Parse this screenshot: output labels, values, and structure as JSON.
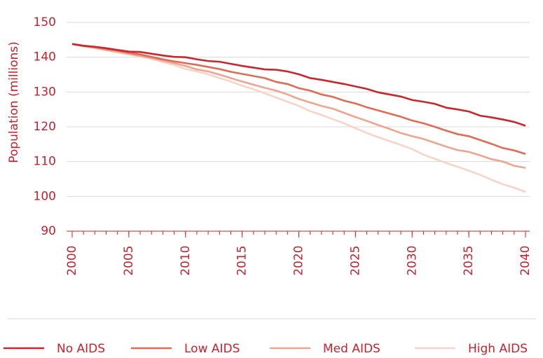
{
  "chart_data": {
    "type": "line",
    "ylabel": "Population (millions)",
    "x": [
      2000,
      2001,
      2002,
      2003,
      2004,
      2005,
      2006,
      2007,
      2008,
      2009,
      2010,
      2011,
      2012,
      2013,
      2014,
      2015,
      2016,
      2017,
      2018,
      2019,
      2020,
      2021,
      2022,
      2023,
      2024,
      2025,
      2026,
      2027,
      2028,
      2029,
      2030,
      2031,
      2032,
      2033,
      2034,
      2035,
      2036,
      2037,
      2038,
      2039,
      2040
    ],
    "xlim": [
      2000,
      2040
    ],
    "xticks": [
      2000,
      2005,
      2010,
      2015,
      2020,
      2025,
      2030,
      2035,
      2040
    ],
    "ylim": [
      90,
      150
    ],
    "yticks": [
      90,
      100,
      110,
      120,
      130,
      140,
      150
    ],
    "grid": true,
    "legend": "bottom",
    "series": [
      {
        "name": "No AIDS",
        "color": "#c8282d",
        "values": [
          143.8,
          143.3,
          143.0,
          142.6,
          142.1,
          141.6,
          141.5,
          141.0,
          140.5,
          140.1,
          140.0,
          139.4,
          138.9,
          138.7,
          138.1,
          137.5,
          137.0,
          136.5,
          136.4,
          135.9,
          135.1,
          134.0,
          133.5,
          132.9,
          132.3,
          131.6,
          130.9,
          129.9,
          129.3,
          128.7,
          127.7,
          127.2,
          126.6,
          125.5,
          125.0,
          124.4,
          123.2,
          122.7,
          122.1,
          121.4,
          120.3
        ]
      },
      {
        "name": "Low AIDS",
        "color": "#e06c55",
        "values": [
          143.8,
          143.3,
          142.9,
          142.4,
          141.9,
          141.3,
          140.8,
          140.1,
          139.4,
          138.8,
          138.3,
          137.8,
          137.2,
          136.6,
          135.8,
          135.2,
          134.6,
          134.0,
          132.9,
          132.3,
          131.1,
          130.4,
          129.3,
          128.6,
          127.5,
          126.7,
          125.6,
          124.7,
          123.8,
          122.9,
          121.8,
          121.0,
          120.0,
          118.9,
          117.9,
          117.3,
          116.2,
          115.1,
          113.9,
          113.2,
          112.2
        ]
      },
      {
        "name": "Med AIDS",
        "color": "#eda491",
        "values": [
          143.8,
          143.2,
          142.7,
          142.1,
          141.6,
          141.0,
          140.4,
          139.8,
          139.0,
          138.3,
          137.5,
          136.5,
          135.9,
          135.0,
          134.0,
          133.0,
          132.1,
          131.2,
          130.4,
          129.3,
          128.0,
          127.0,
          126.0,
          125.2,
          124.0,
          122.8,
          121.7,
          120.5,
          119.4,
          118.2,
          117.3,
          116.5,
          115.4,
          114.3,
          113.3,
          112.8,
          111.8,
          110.7,
          110.0,
          108.8,
          108.2
        ]
      },
      {
        "name": "High AIDS",
        "color": "#f6d4c8",
        "values": [
          143.8,
          143.1,
          142.6,
          142.0,
          141.4,
          140.8,
          140.2,
          139.5,
          138.6,
          137.8,
          136.6,
          135.9,
          135.1,
          134.0,
          133.0,
          131.8,
          130.8,
          129.6,
          128.4,
          127.2,
          126.0,
          124.5,
          123.4,
          122.2,
          121.0,
          119.6,
          118.2,
          117.0,
          115.9,
          114.8,
          113.6,
          112.0,
          110.8,
          109.6,
          108.5,
          107.4,
          106.2,
          104.8,
          103.5,
          102.5,
          101.3
        ]
      }
    ]
  }
}
